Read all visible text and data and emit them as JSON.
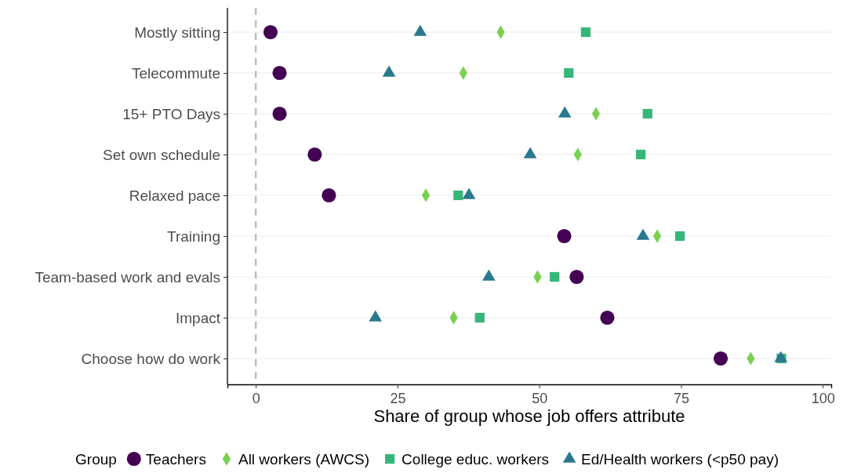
{
  "chart_data": {
    "type": "scatter",
    "orientation": "horizontal",
    "xlabel": "Share of group whose job offers attribute",
    "legend_title": "Group",
    "legend": "bottom",
    "grid": "y",
    "categories": [
      "Mostly sitting",
      "Telecommute",
      "15+ PTO Days",
      "Set own schedule",
      "Relaxed pace",
      "Training",
      "Team-based work and evals",
      "Impact",
      "Choose how do work"
    ],
    "xlim": [
      -5,
      101.5
    ],
    "xticks": [
      0,
      25,
      50,
      75,
      100
    ],
    "ref_lines": [
      {
        "axis": "x",
        "value": 0,
        "color": "#bebebe",
        "line_style": "dashed"
      }
    ],
    "series": [
      {
        "name": "Teachers",
        "color": "#440154",
        "marker": "circle",
        "values": [
          2.6,
          4.2,
          4.2,
          10.4,
          12.9,
          54.4,
          56.6,
          62.0,
          82.0
        ]
      },
      {
        "name": "All workers (AWCS)",
        "color": "#7ad151",
        "marker": "diamond",
        "values": [
          43.2,
          36.6,
          60.0,
          56.8,
          30.0,
          70.8,
          49.7,
          34.9,
          87.3
        ]
      },
      {
        "name": "College educ. workers",
        "color": "#35b779",
        "marker": "square",
        "values": [
          58.2,
          55.2,
          69.1,
          67.9,
          35.7,
          74.8,
          52.7,
          39.5,
          92.7
        ]
      },
      {
        "name": "Ed/Health workers (<p50 pay)",
        "color": "#2a788e",
        "marker": "triangle",
        "values": [
          29.0,
          23.5,
          54.5,
          48.4,
          37.6,
          68.3,
          41.1,
          21.1,
          92.6
        ]
      }
    ]
  }
}
